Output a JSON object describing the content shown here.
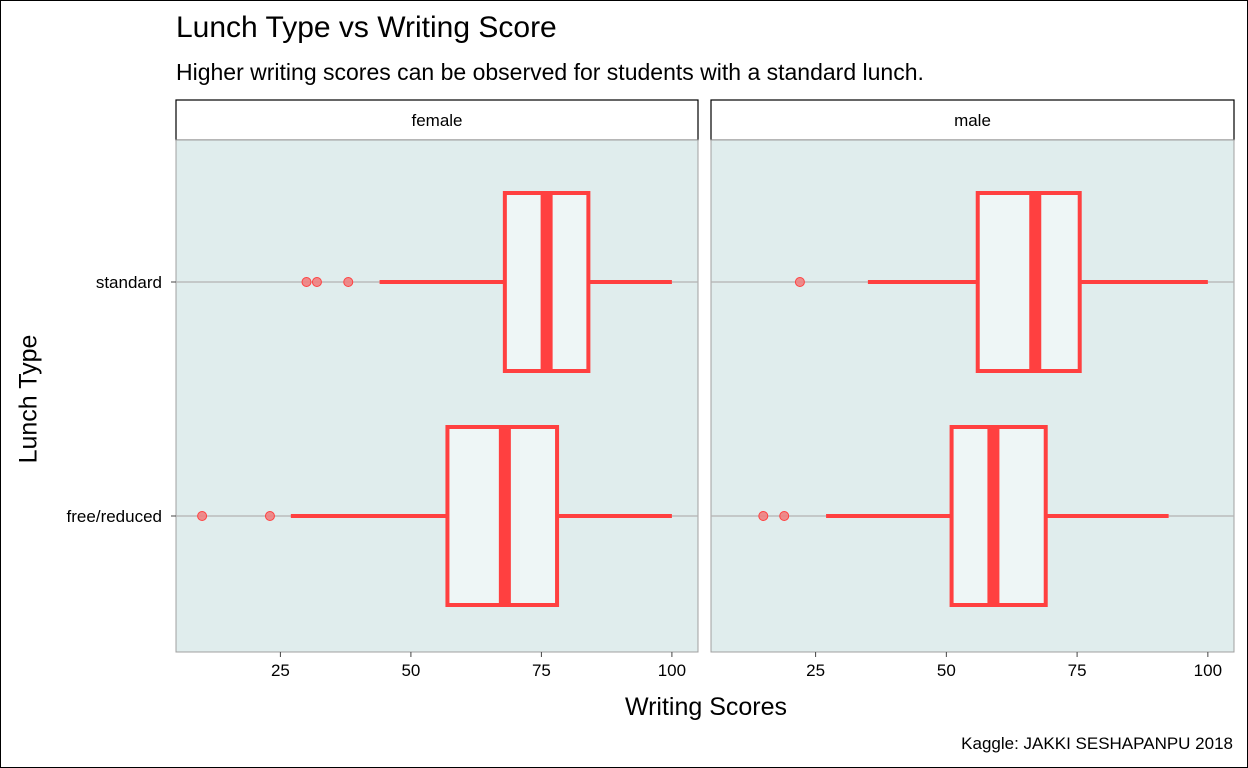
{
  "header": {
    "title": "Lunch Type vs Writing Score",
    "subtitle": "Higher writing scores can be observed for students with a standard lunch."
  },
  "caption": "Kaggle: JAKKI SESHAPANPU 2018",
  "colors": {
    "panel_bg": "#e0eded",
    "box_fill": "#eef6f6",
    "box_stroke": "#ff4040",
    "outlier_fill": "#f08080",
    "grid": "#b3b3b3"
  },
  "chart_data": {
    "type": "boxplot",
    "orientation": "horizontal",
    "xlabel": "Writing Scores",
    "ylabel": "Lunch Type",
    "xlim": [
      5,
      105
    ],
    "x_ticks": [
      25,
      50,
      75,
      100
    ],
    "categories": [
      "standard",
      "free/reduced"
    ],
    "facets": [
      {
        "name": "female",
        "boxes": [
          {
            "category": "standard",
            "whisker_low": 44,
            "q1": 68,
            "median": 76,
            "q3": 84,
            "whisker_high": 100,
            "outliers": [
              30,
              32,
              38
            ]
          },
          {
            "category": "free/reduced",
            "whisker_low": 27,
            "q1": 57,
            "median": 68,
            "q3": 78,
            "whisker_high": 100,
            "outliers": [
              10,
              23
            ]
          }
        ]
      },
      {
        "name": "male",
        "boxes": [
          {
            "category": "standard",
            "whisker_low": 35,
            "q1": 56,
            "median": 67,
            "q3": 75.5,
            "whisker_high": 100,
            "outliers": [
              22
            ]
          },
          {
            "category": "free/reduced",
            "whisker_low": 27,
            "q1": 51,
            "median": 59,
            "q3": 69,
            "whisker_high": 92.5,
            "outliers": [
              15,
              19
            ]
          }
        ]
      }
    ]
  }
}
